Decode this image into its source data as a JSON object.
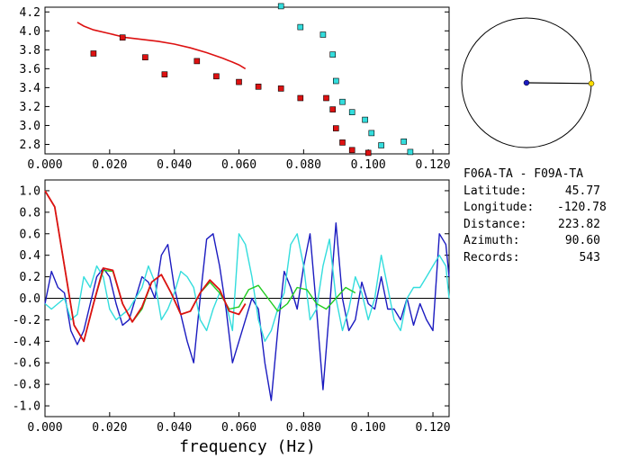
{
  "info": {
    "pair": "F06A-TA - F09A-TA",
    "latitude_label": "Latitude:",
    "latitude": "45.77",
    "longitude_label": "Longitude:",
    "longitude": "-120.78",
    "distance_label": "Distance:",
    "distance": "223.82",
    "azimuth_label": "Azimuth:",
    "azimuth": "90.60",
    "records_label": "Records:",
    "records": "543"
  },
  "colors": {
    "red": "#dd1111",
    "blue": "#1b1bc0",
    "cyan": "#33dddd",
    "green": "#22cc22"
  },
  "azimuth_deg": 90.6,
  "chart_data": [
    {
      "type": "scatter",
      "title": "",
      "xlabel": "",
      "ylabel": "",
      "xlim": [
        0.0,
        0.125
      ],
      "ylim": [
        2.7,
        4.25
      ],
      "xticks": [
        "0.000",
        "0.020",
        "0.040",
        "0.060",
        "0.080",
        "0.100",
        "0.120"
      ],
      "yticks": [
        "2.8",
        "3.0",
        "3.2",
        "3.4",
        "3.6",
        "3.8",
        "4.0",
        "4.2"
      ],
      "curve_red": {
        "x": [
          0.01,
          0.012,
          0.015,
          0.02,
          0.025,
          0.03,
          0.035,
          0.04,
          0.045,
          0.05,
          0.055,
          0.058,
          0.06,
          0.062
        ],
        "y": [
          4.09,
          4.05,
          4.01,
          3.97,
          3.93,
          3.91,
          3.89,
          3.86,
          3.82,
          3.77,
          3.71,
          3.67,
          3.64,
          3.6
        ]
      },
      "points_red": {
        "x": [
          0.015,
          0.024,
          0.031,
          0.037,
          0.047,
          0.053,
          0.06,
          0.066,
          0.073,
          0.079,
          0.087,
          0.089,
          0.09,
          0.092,
          0.095,
          0.1
        ],
        "y": [
          3.76,
          3.93,
          3.72,
          3.54,
          3.68,
          3.52,
          3.46,
          3.41,
          3.39,
          3.29,
          3.29,
          3.17,
          2.97,
          2.82,
          2.74,
          2.71
        ]
      },
      "points_cyan": {
        "x": [
          0.073,
          0.079,
          0.086,
          0.089,
          0.09,
          0.092,
          0.095,
          0.099,
          0.101,
          0.104,
          0.111,
          0.113
        ],
        "y": [
          4.26,
          4.04,
          3.96,
          3.75,
          3.47,
          3.25,
          3.14,
          3.06,
          2.92,
          2.79,
          2.83,
          2.72
        ]
      }
    },
    {
      "type": "line",
      "title": "",
      "xlabel": "frequency (Hz)",
      "ylabel": "",
      "xlim": [
        0.0,
        0.125
      ],
      "ylim": [
        -1.1,
        1.1
      ],
      "xticks": [
        "0.000",
        "0.020",
        "0.040",
        "0.060",
        "0.080",
        "0.100",
        "0.120"
      ],
      "yticks": [
        "1.0",
        "0.8",
        "0.6",
        "0.4",
        "0.2",
        "0.0",
        "-0.2",
        "-0.4",
        "-0.6",
        "-0.8",
        "-1.0"
      ],
      "series": [
        {
          "color": "blue",
          "x": [
            0.0,
            0.002,
            0.004,
            0.006,
            0.008,
            0.01,
            0.012,
            0.014,
            0.016,
            0.018,
            0.02,
            0.022,
            0.024,
            0.026,
            0.028,
            0.03,
            0.032,
            0.034,
            0.036,
            0.038,
            0.04,
            0.042,
            0.044,
            0.046,
            0.048,
            0.05,
            0.052,
            0.054,
            0.056,
            0.058,
            0.06,
            0.062,
            0.064,
            0.066,
            0.068,
            0.07,
            0.072,
            0.074,
            0.076,
            0.078,
            0.08,
            0.082,
            0.084,
            0.086,
            0.088,
            0.09,
            0.092,
            0.094,
            0.096,
            0.098,
            0.1,
            0.102,
            0.104,
            0.106,
            0.108,
            0.11,
            0.112,
            0.114,
            0.116,
            0.118,
            0.12,
            0.122,
            0.124,
            0.125
          ],
          "y": [
            -0.05,
            0.25,
            0.1,
            0.05,
            -0.3,
            -0.43,
            -0.3,
            -0.05,
            0.2,
            0.28,
            0.2,
            -0.05,
            -0.25,
            -0.2,
            0.0,
            0.2,
            0.15,
            0.0,
            0.4,
            0.5,
            0.1,
            -0.15,
            -0.4,
            -0.6,
            0.0,
            0.55,
            0.6,
            0.3,
            -0.1,
            -0.6,
            -0.4,
            -0.2,
            0.0,
            -0.1,
            -0.6,
            -0.95,
            -0.3,
            0.25,
            0.1,
            -0.1,
            0.3,
            0.6,
            -0.1,
            -0.85,
            -0.1,
            0.7,
            0.0,
            -0.3,
            -0.2,
            0.15,
            -0.05,
            -0.1,
            0.2,
            -0.1,
            -0.1,
            -0.2,
            0.0,
            -0.25,
            -0.05,
            -0.2,
            -0.3,
            0.6,
            0.5,
            0.2
          ]
        },
        {
          "color": "cyan",
          "x": [
            0.0,
            0.002,
            0.004,
            0.006,
            0.008,
            0.01,
            0.012,
            0.014,
            0.016,
            0.018,
            0.02,
            0.022,
            0.024,
            0.026,
            0.028,
            0.03,
            0.032,
            0.034,
            0.036,
            0.038,
            0.04,
            0.042,
            0.044,
            0.046,
            0.048,
            0.05,
            0.052,
            0.054,
            0.056,
            0.058,
            0.06,
            0.062,
            0.064,
            0.066,
            0.068,
            0.07,
            0.072,
            0.074,
            0.076,
            0.078,
            0.08,
            0.082,
            0.084,
            0.086,
            0.088,
            0.09,
            0.092,
            0.094,
            0.096,
            0.098,
            0.1,
            0.102,
            0.104,
            0.106,
            0.108,
            0.11,
            0.112,
            0.114,
            0.116,
            0.118,
            0.12,
            0.122,
            0.124,
            0.125
          ],
          "y": [
            -0.05,
            -0.1,
            -0.05,
            0.0,
            -0.2,
            -0.15,
            0.2,
            0.1,
            0.3,
            0.2,
            -0.1,
            -0.2,
            -0.15,
            -0.1,
            0.0,
            0.1,
            0.3,
            0.15,
            -0.2,
            -0.1,
            0.05,
            0.25,
            0.2,
            0.1,
            -0.2,
            -0.3,
            -0.1,
            0.05,
            -0.05,
            -0.3,
            0.6,
            0.5,
            0.2,
            -0.2,
            -0.4,
            -0.3,
            -0.1,
            0.05,
            0.5,
            0.6,
            0.3,
            -0.2,
            -0.1,
            0.3,
            0.55,
            0.0,
            -0.3,
            -0.1,
            0.2,
            0.05,
            -0.2,
            0.0,
            0.4,
            0.1,
            -0.2,
            -0.3,
            0.0,
            0.1,
            0.1,
            0.2,
            0.3,
            0.4,
            0.3,
            0.0
          ]
        },
        {
          "color": "green",
          "x": [
            0.0,
            0.003,
            0.006,
            0.009,
            0.012,
            0.015,
            0.018,
            0.021,
            0.024,
            0.027,
            0.03,
            0.033,
            0.036,
            0.039,
            0.042,
            0.045,
            0.048,
            0.051,
            0.054,
            0.057,
            0.06,
            0.063,
            0.066,
            0.069,
            0.072,
            0.075,
            0.078,
            0.081,
            0.084,
            0.087,
            0.09,
            0.093,
            0.096
          ],
          "y": [
            1.0,
            0.85,
            0.3,
            -0.25,
            -0.4,
            -0.05,
            0.26,
            0.25,
            -0.05,
            -0.22,
            -0.1,
            0.15,
            0.22,
            0.05,
            -0.15,
            -0.12,
            0.05,
            0.15,
            0.05,
            -0.1,
            -0.08,
            0.08,
            0.12,
            0.0,
            -0.12,
            -0.05,
            0.1,
            0.08,
            -0.05,
            -0.1,
            0.0,
            0.1,
            0.05
          ]
        },
        {
          "color": "red",
          "x": [
            0.0,
            0.003,
            0.006,
            0.009,
            0.012,
            0.015,
            0.018,
            0.021,
            0.024,
            0.027,
            0.03,
            0.033,
            0.036,
            0.039,
            0.042,
            0.045,
            0.048,
            0.051,
            0.054,
            0.057,
            0.06,
            0.062
          ],
          "y": [
            1.0,
            0.85,
            0.3,
            -0.25,
            -0.4,
            -0.05,
            0.28,
            0.26,
            -0.05,
            -0.22,
            -0.08,
            0.15,
            0.22,
            0.05,
            -0.15,
            -0.12,
            0.05,
            0.17,
            0.08,
            -0.12,
            -0.15,
            -0.05
          ]
        }
      ]
    }
  ]
}
